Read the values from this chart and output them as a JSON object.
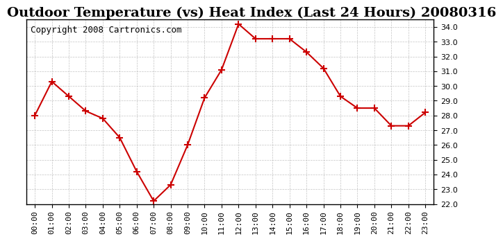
{
  "title": "Outdoor Temperature (vs) Heat Index (Last 24 Hours) 20080316",
  "copyright": "Copyright 2008 Cartronics.com",
  "hours": [
    "00:00",
    "01:00",
    "02:00",
    "03:00",
    "04:00",
    "05:00",
    "06:00",
    "07:00",
    "08:00",
    "09:00",
    "10:00",
    "11:00",
    "12:00",
    "13:00",
    "14:00",
    "15:00",
    "16:00",
    "17:00",
    "18:00",
    "19:00",
    "20:00",
    "21:00",
    "22:00",
    "23:00"
  ],
  "values": [
    28.0,
    30.3,
    29.3,
    28.3,
    27.8,
    26.5,
    24.2,
    22.2,
    23.3,
    26.0,
    29.2,
    31.1,
    34.2,
    33.2,
    33.2,
    33.2,
    32.3,
    31.2,
    29.3,
    28.5,
    28.5,
    27.3,
    27.3,
    28.2
  ],
  "line_color": "#cc0000",
  "marker": "+",
  "marker_size": 7,
  "ylim": [
    22.0,
    34.5
  ],
  "yticks": [
    22.0,
    23.0,
    24.0,
    25.0,
    26.0,
    27.0,
    28.0,
    29.0,
    30.0,
    31.0,
    32.0,
    33.0,
    34.0
  ],
  "background_color": "#ffffff",
  "plot_bg_color": "#ffffff",
  "grid_color": "#aaaaaa",
  "title_fontsize": 14,
  "copyright_fontsize": 9,
  "tick_fontsize": 8,
  "ylabel_side": "right"
}
